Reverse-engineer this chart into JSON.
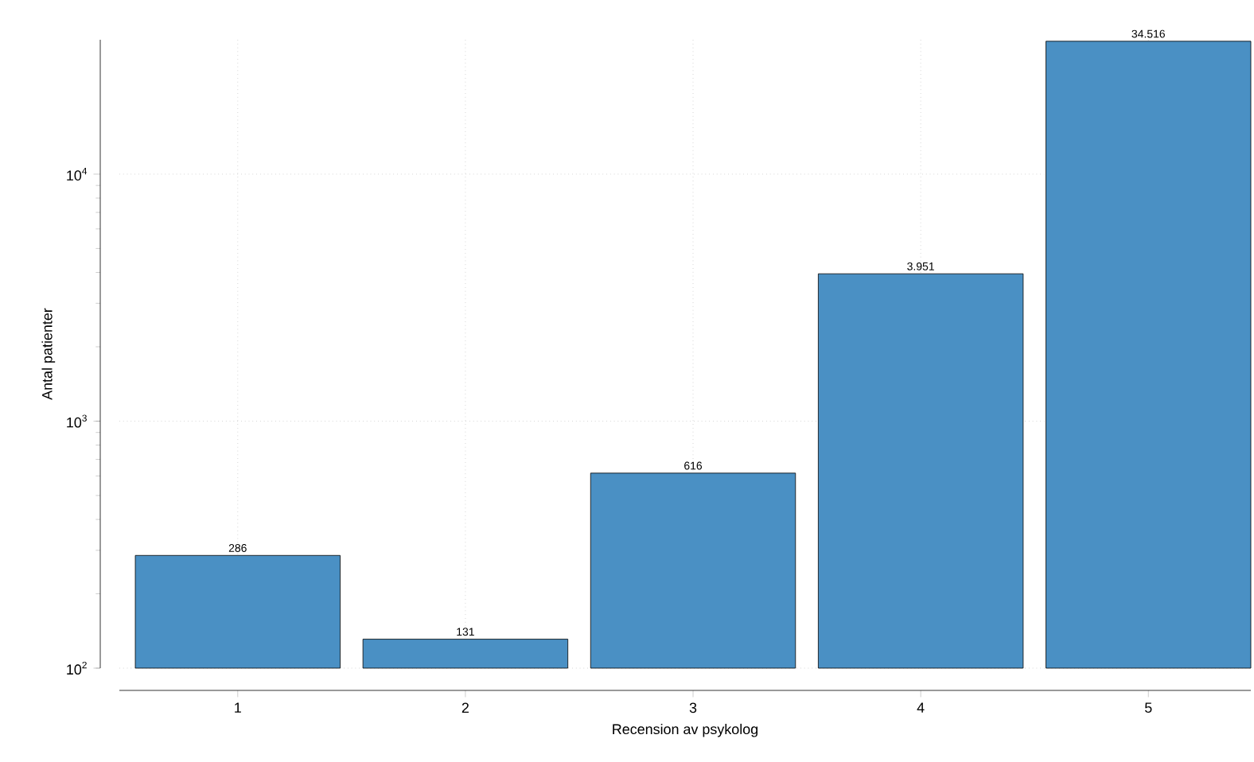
{
  "chart_data": {
    "type": "bar",
    "xlabel": "Recension av psykolog",
    "ylabel": "Antal patienter",
    "categories": [
      "1",
      "2",
      "3",
      "4",
      "5"
    ],
    "values": [
      286,
      131,
      616,
      3951,
      34516
    ],
    "value_labels": [
      "286",
      "131",
      "616",
      "3.951",
      "34.516"
    ],
    "color": "#4a90c4",
    "log": "y",
    "ylim": [
      100,
      35000
    ],
    "yticks": [
      {
        "value": 100,
        "label": "10$^{2}$"
      },
      {
        "value": 1000,
        "label": "10$^{3}$"
      },
      {
        "value": 10000,
        "label": "10$^{4}$"
      }
    ],
    "grid": true
  }
}
